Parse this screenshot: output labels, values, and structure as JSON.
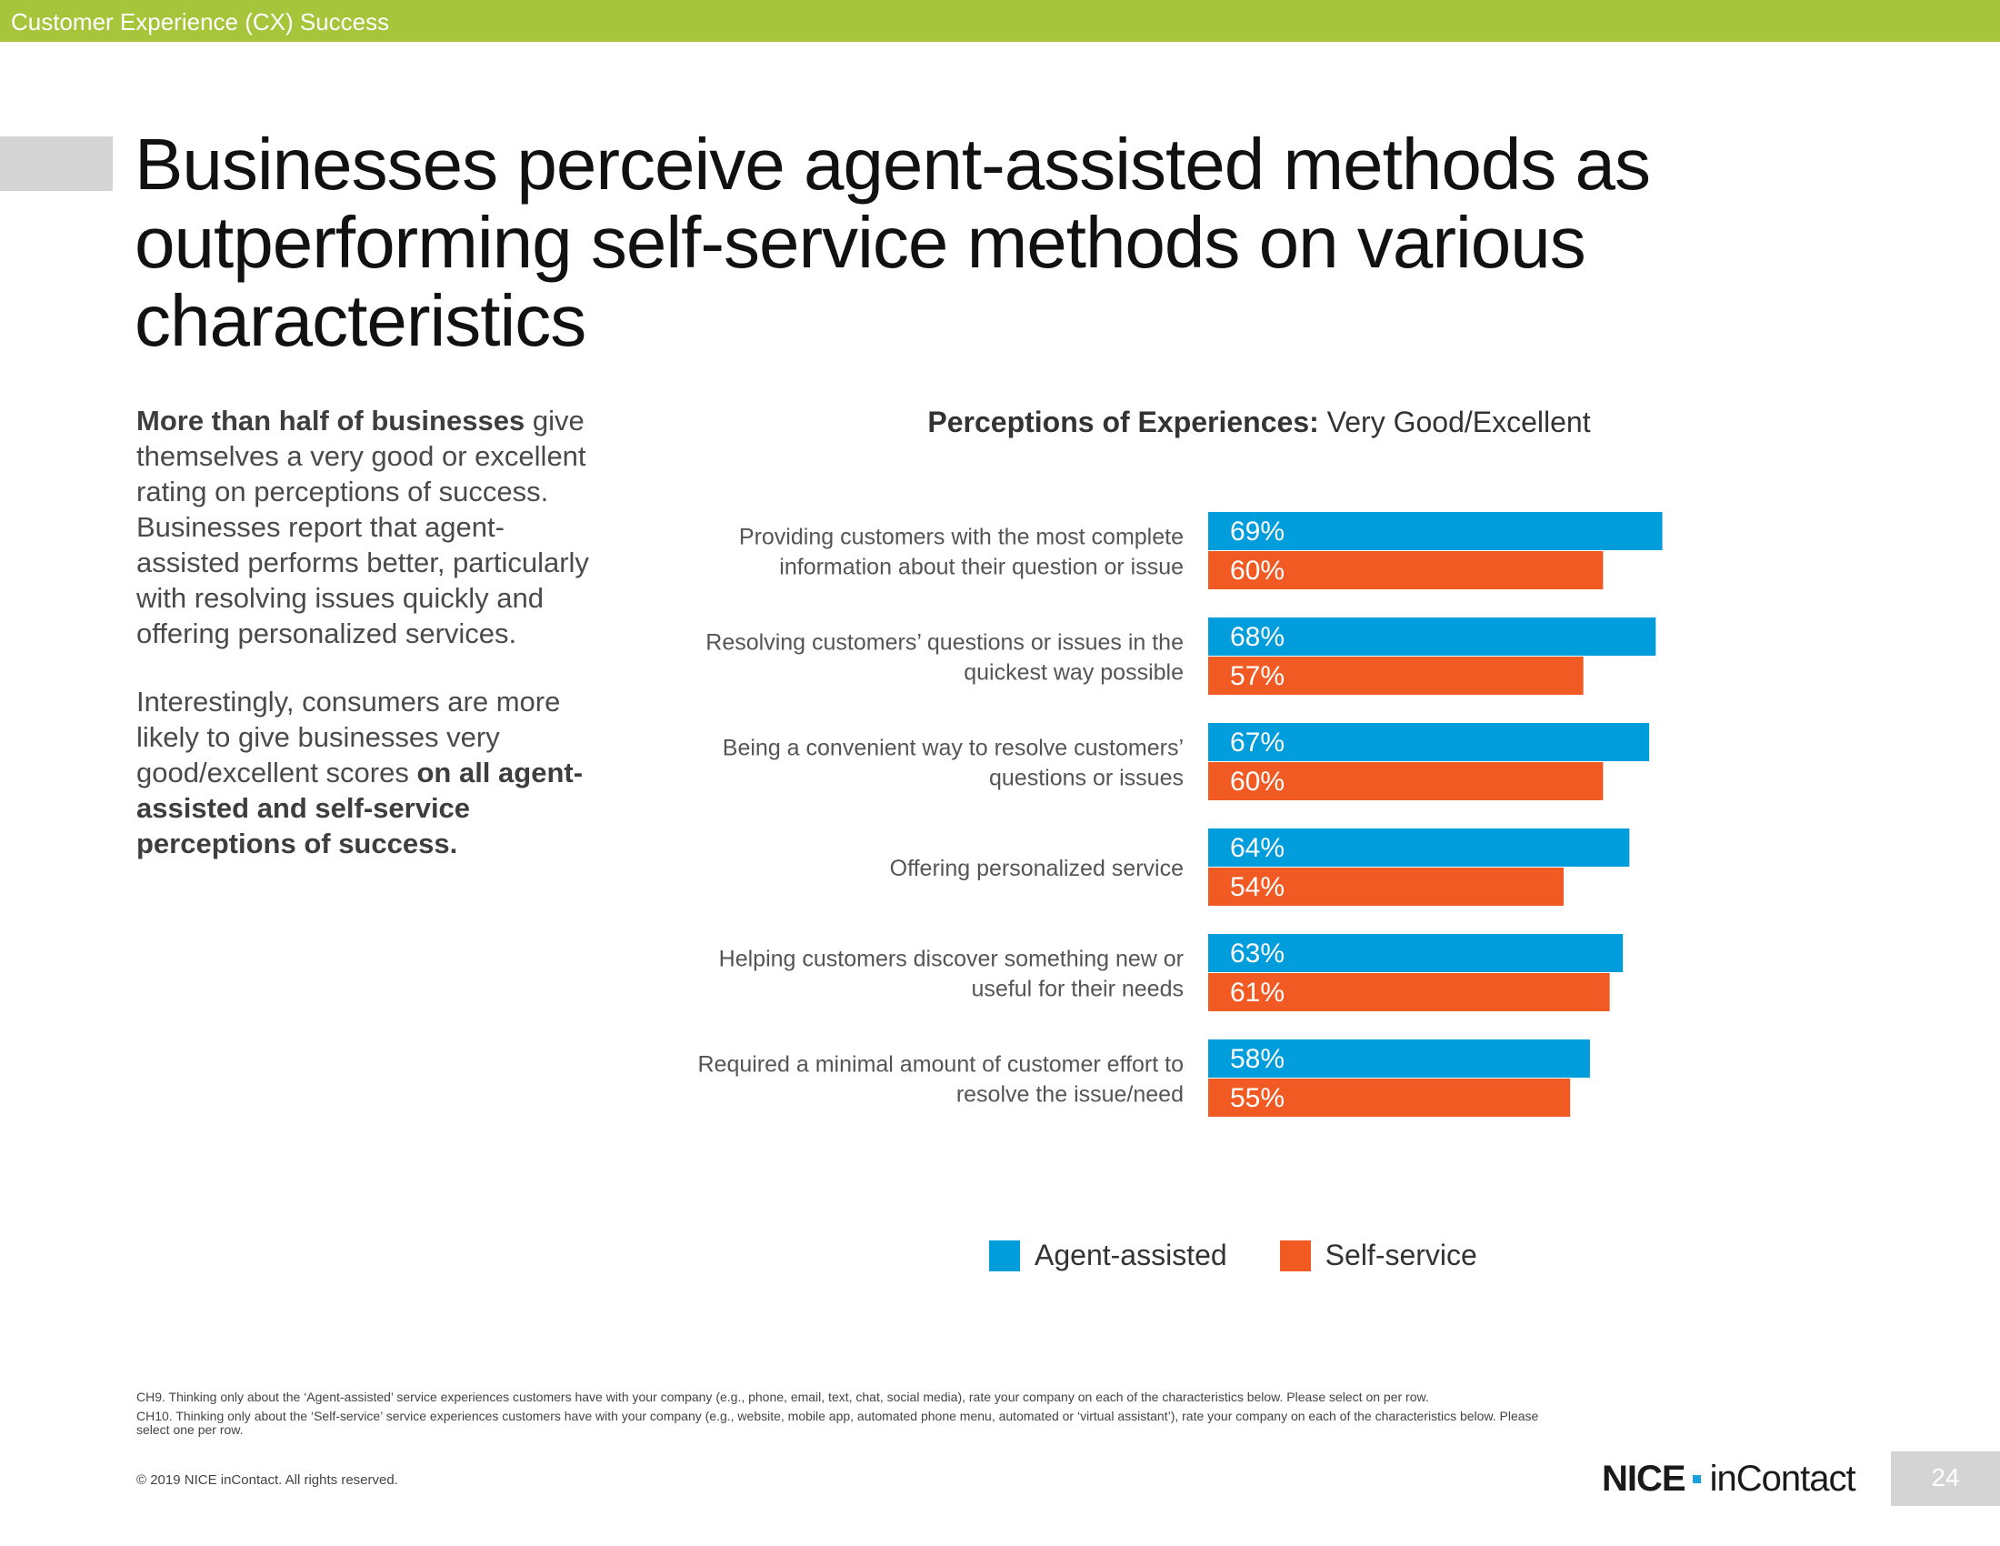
{
  "header": {
    "section": "Customer Experience (CX) Success"
  },
  "title": "Businesses perceive agent-assisted methods as outperforming self-service methods on various characteristics",
  "left_copy": {
    "p1_bold": "More than half of businesses",
    "p1_rest": "give themselves a very good or excellent rating on perceptions of success. Businesses report that agent-assisted performs better, particularly with resolving issues quickly and offering personalized services.",
    "p2_rest": "Interestingly, consumers are more likely to give businesses very good/excellent scores",
    "p2_bold": "on all agent-assisted and self-service perceptions of success."
  },
  "chart_heading": {
    "bold": "Perceptions of Experiences:",
    "rest": "Very Good/Excellent"
  },
  "chart_data": {
    "type": "bar",
    "orientation": "horizontal",
    "title": "Perceptions of Experiences: Very Good/Excellent",
    "categories": [
      [
        "Providing customers with the most complete",
        "information about their question or issue"
      ],
      [
        "Resolving customers’ questions or issues in the",
        "quickest way possible"
      ],
      [
        "Being a convenient way to resolve customers’",
        "questions or issues"
      ],
      [
        "Offering personalized service"
      ],
      [
        "Helping customers discover something new or",
        "useful for their needs"
      ],
      [
        "Required a minimal amount of customer effort to",
        "resolve the issue/need"
      ]
    ],
    "series": [
      {
        "name": "Agent-assisted",
        "color": "#009ddc",
        "values": [
          69,
          68,
          67,
          64,
          63,
          58
        ]
      },
      {
        "name": "Self-service",
        "color": "#f15a22",
        "values": [
          60,
          57,
          60,
          54,
          61,
          55
        ]
      }
    ],
    "value_suffix": "%",
    "xlim": [
      0,
      100
    ],
    "axis_visible": false,
    "grid": false,
    "legend_position": "bottom"
  },
  "footnotes": [
    "CH9. Thinking only about the ‘Agent-assisted’ service experiences customers have with your company (e.g., phone, email, text, chat, social media), rate your company on each of the characteristics below. Please select on per row.",
    "CH10. Thinking only about the ‘Self-service’ service experiences customers have with your company (e.g., website, mobile app, automated phone menu, automated or ‘virtual assistant’), rate your company on each of the characteristics below. Please select one per row."
  ],
  "copyright": "© 2019 NICE inContact. All rights reserved.",
  "brand": {
    "nice": "NICE",
    "incontact": "inContact"
  },
  "page_number": "24"
}
